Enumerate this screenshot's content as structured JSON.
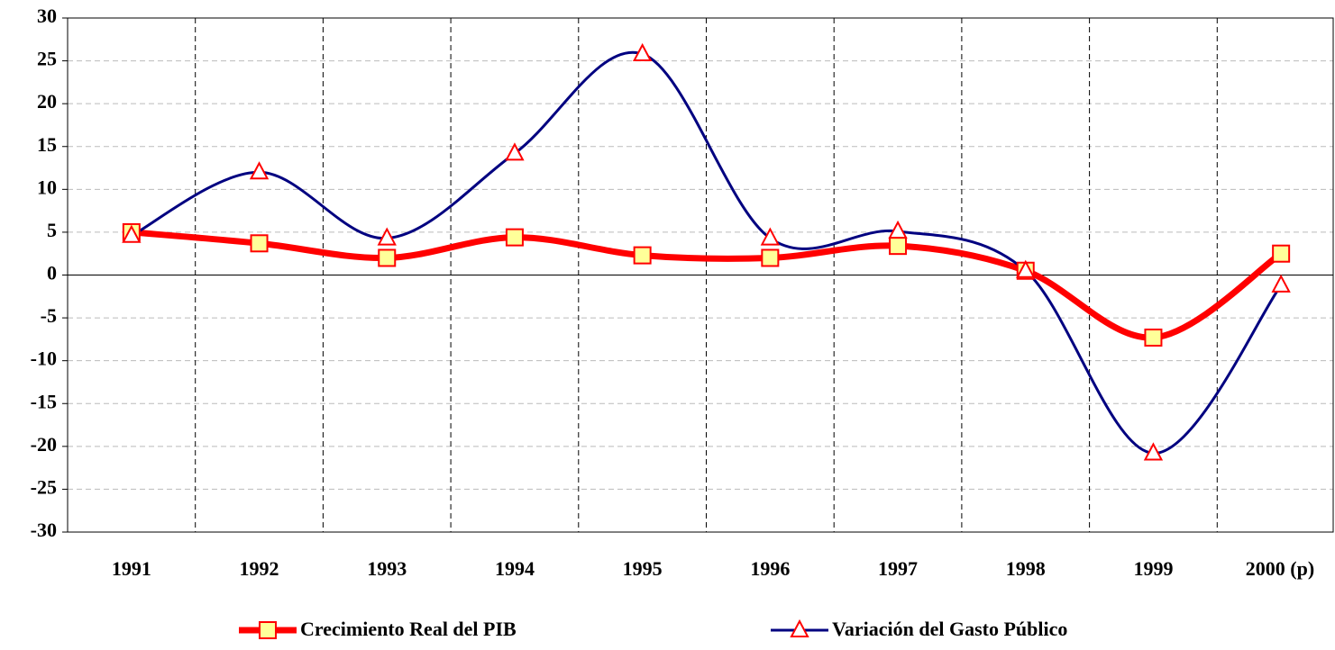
{
  "chart_data": {
    "type": "line",
    "categories": [
      "1991",
      "1992",
      "1993",
      "1994",
      "1995",
      "1996",
      "1997",
      "1998",
      "1999",
      "2000 (p)"
    ],
    "series": [
      {
        "name": "Crecimiento Real del PIB",
        "color": "#ff0000",
        "marker": "square",
        "values": [
          5.0,
          3.7,
          2.0,
          4.4,
          2.3,
          2.0,
          3.4,
          0.5,
          -7.3,
          2.5
        ]
      },
      {
        "name": "Variación del Gasto Público",
        "color": "#000080",
        "marker": "triangle",
        "values": [
          4.6,
          12.0,
          4.3,
          14.2,
          25.8,
          4.3,
          5.1,
          0.5,
          -20.8,
          -1.2
        ]
      }
    ],
    "ylim": [
      -30,
      30
    ],
    "yticks": [
      -30,
      -25,
      -20,
      -15,
      -10,
      -5,
      0,
      5,
      10,
      15,
      20,
      25,
      30
    ],
    "grid": true,
    "smooth": true,
    "legend": "bottom"
  }
}
